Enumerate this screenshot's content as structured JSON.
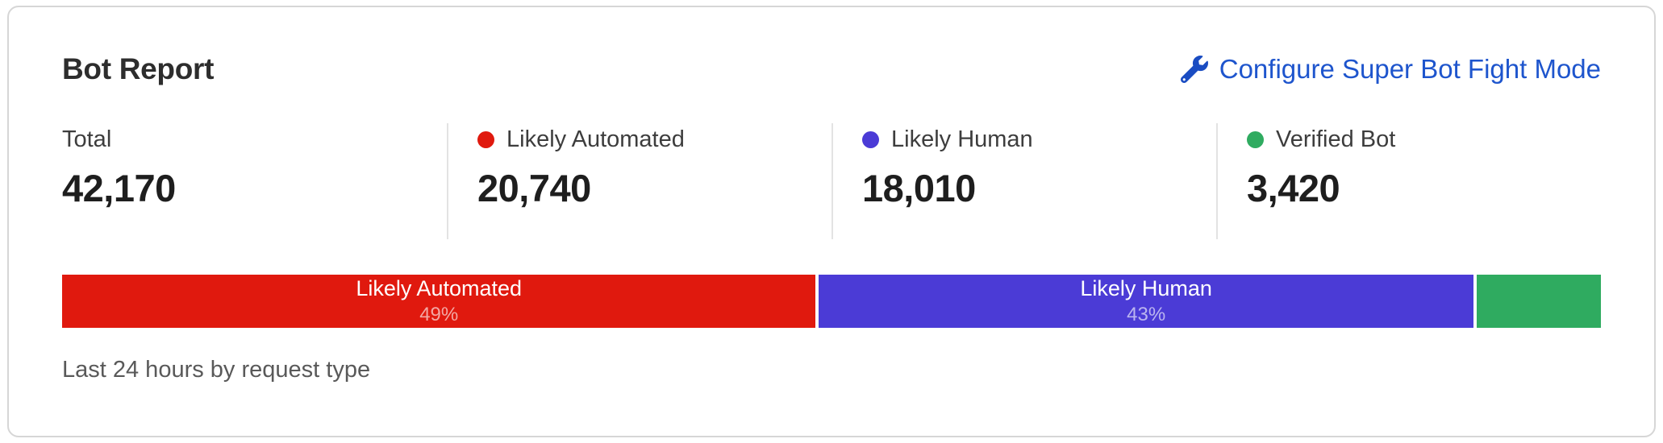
{
  "header": {
    "title": "Bot Report",
    "link": {
      "label": "Configure Super Bot Fight Mode",
      "icon": "wrench-icon",
      "color": "#1e55cd"
    }
  },
  "stats": {
    "items": [
      {
        "label": "Total",
        "value": "42,170",
        "dot_color": null
      },
      {
        "label": "Likely Automated",
        "value": "20,740",
        "dot_color": "#e0190e"
      },
      {
        "label": "Likely Human",
        "value": "18,010",
        "dot_color": "#4b3bd6"
      },
      {
        "label": "Verified Bot",
        "value": "3,420",
        "dot_color": "#2fab60"
      }
    ]
  },
  "chart_data": {
    "type": "bar",
    "variant": "stacked-horizontal-100-percent",
    "title": "Bot Report",
    "categories": [
      "Likely Automated",
      "Likely Human",
      "Verified Bot"
    ],
    "values": [
      20740,
      18010,
      3420
    ],
    "total": 42170,
    "legend_position": "none",
    "segments": [
      {
        "name": "Likely Automated",
        "label": "Likely Automated",
        "percent_label": "49%",
        "value": 20740,
        "width_pct": 49.18,
        "color": "#e0190e"
      },
      {
        "name": "Likely Human",
        "label": "Likely Human",
        "percent_label": "43%",
        "value": 18010,
        "width_pct": 42.71,
        "color": "#4b3bd6"
      },
      {
        "name": "Verified Bot",
        "label": "",
        "percent_label": "",
        "value": 3420,
        "width_pct": 8.11,
        "color": "#2fab60"
      }
    ]
  },
  "footer": {
    "caption": "Last 24 hours by request type"
  }
}
